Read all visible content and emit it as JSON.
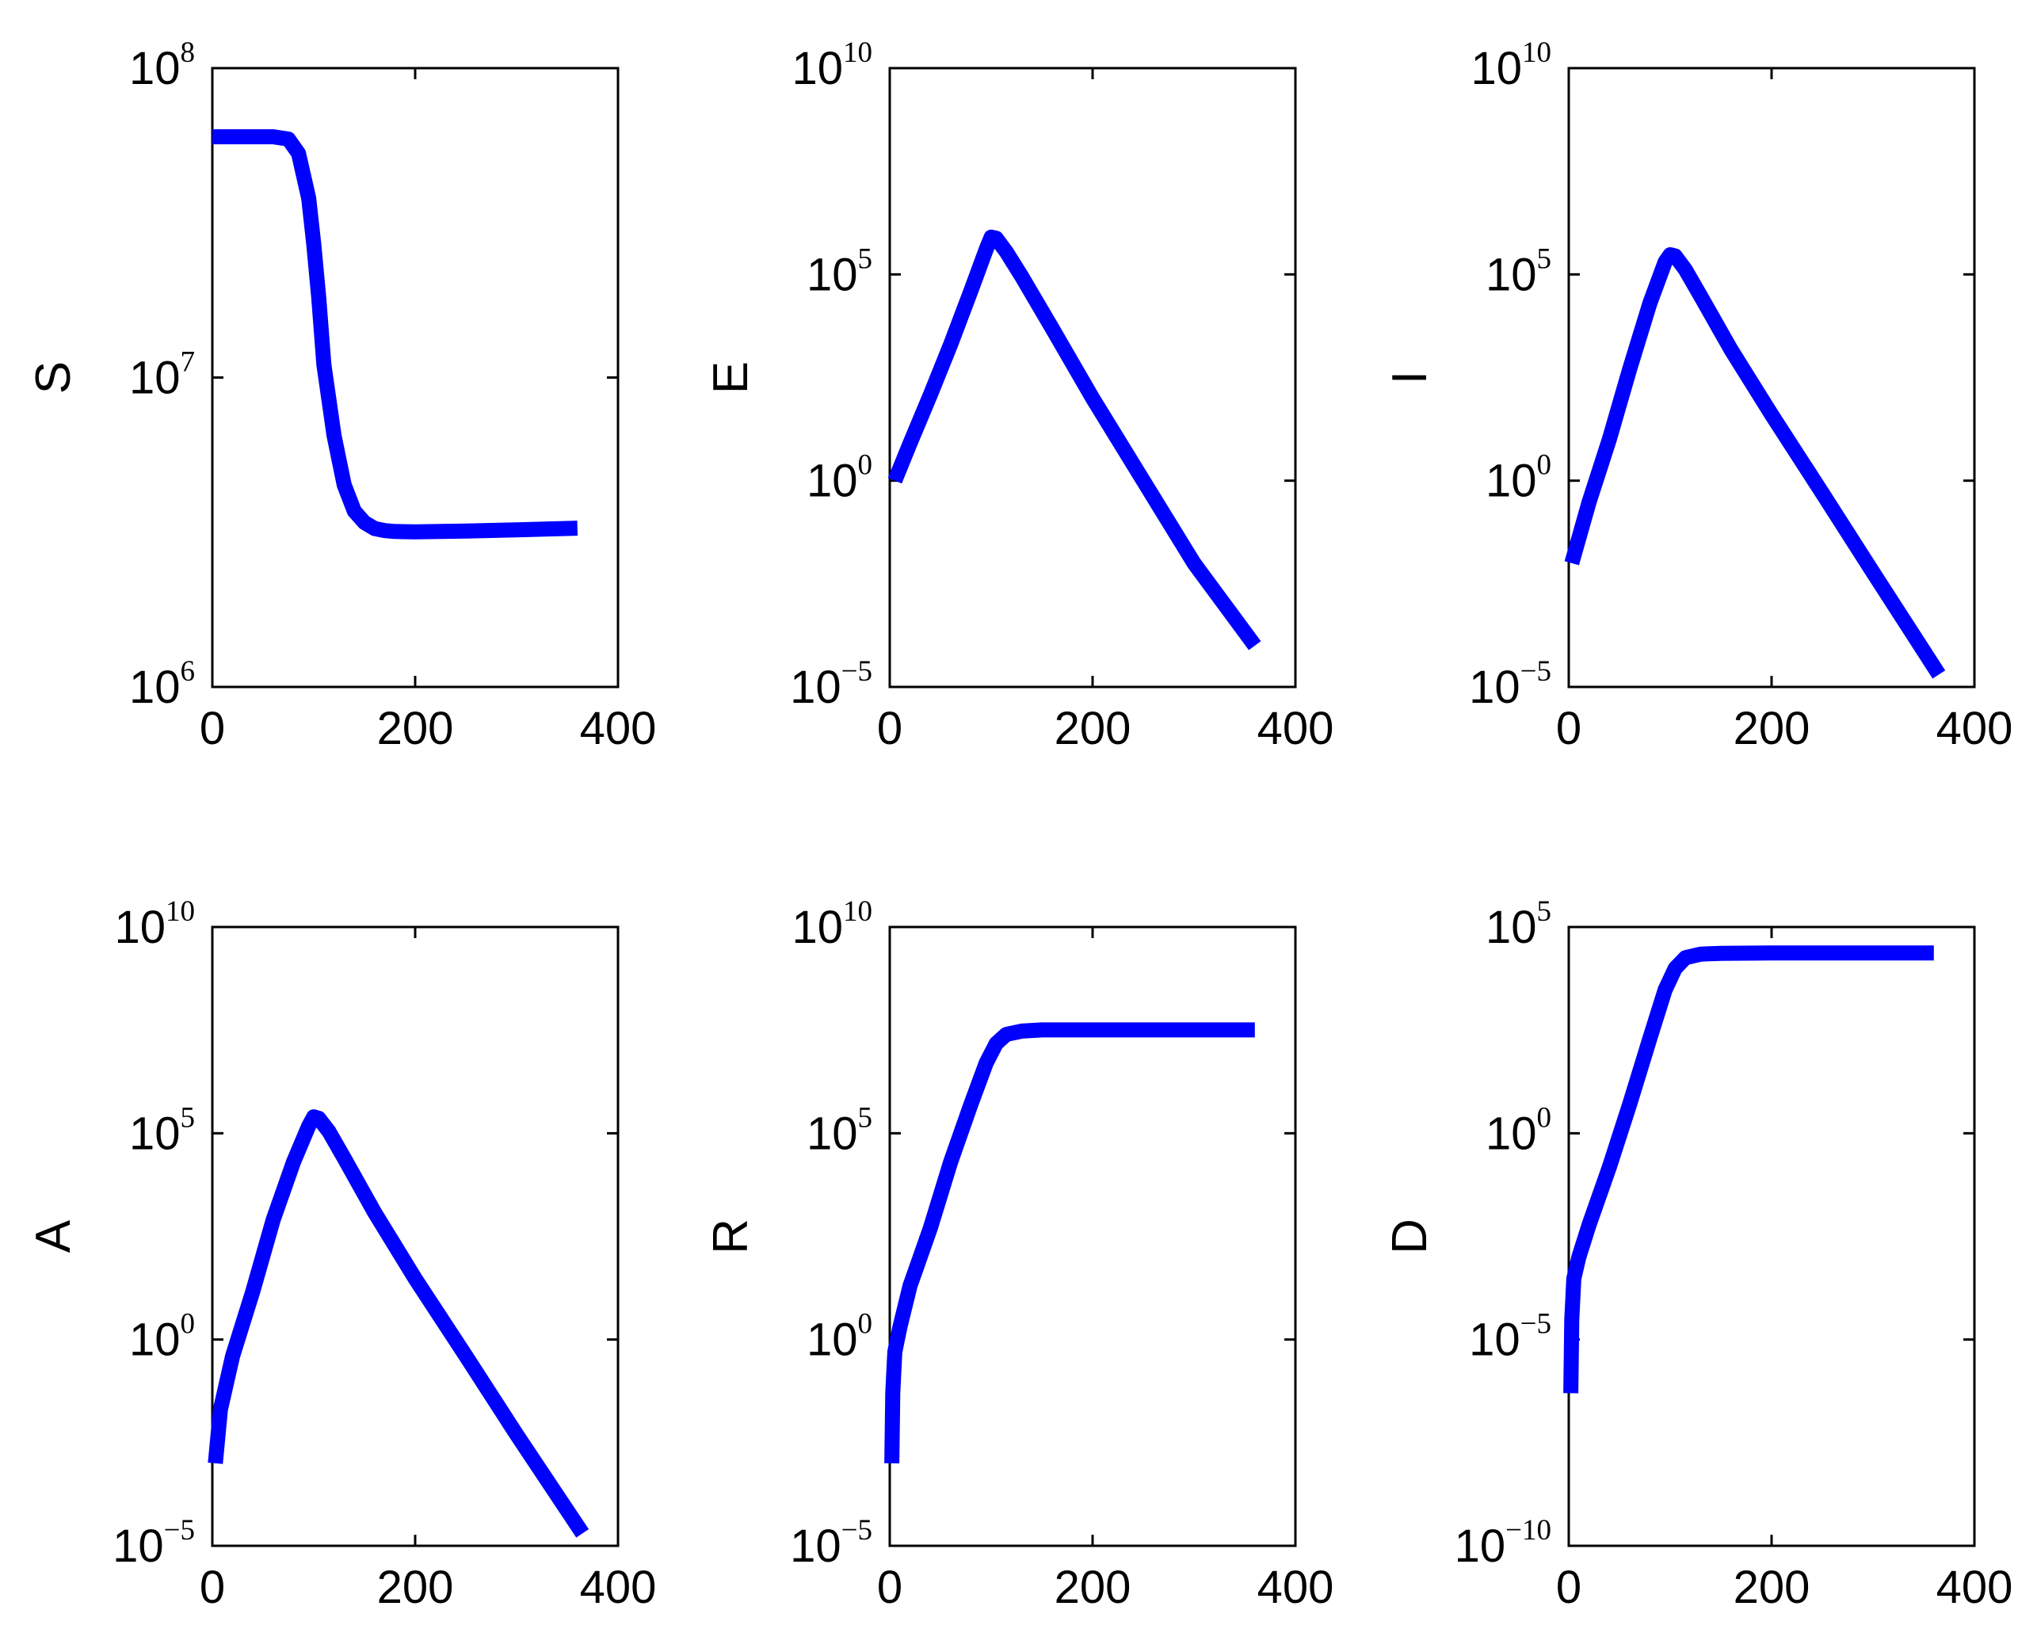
{
  "chart_data": [
    {
      "type": "line",
      "ylabel": "S",
      "xlim": [
        0,
        400
      ],
      "xticks": [
        0,
        200,
        400
      ],
      "yscale": "log",
      "ylim": [
        1000000,
        100000000
      ],
      "yticks": [
        {
          "base": "10",
          "exp": "6"
        },
        {
          "base": "10",
          "exp": "7"
        },
        {
          "base": "10",
          "exp": "8"
        }
      ],
      "line_color": "#0000ff",
      "series": [
        {
          "x": [
            0,
            30,
            60,
            75,
            85,
            95,
            100,
            105,
            110,
            120,
            130,
            140,
            150,
            160,
            170,
            180,
            200,
            250,
            300,
            360
          ],
          "y": [
            60000000,
            60000000,
            60000000,
            59000000,
            53000000,
            38000000,
            27000000,
            18000000,
            11000000,
            6500000,
            4500000,
            3700000,
            3400000,
            3250000,
            3200000,
            3180000,
            3170000,
            3190000,
            3220000,
            3260000
          ]
        }
      ]
    },
    {
      "type": "line",
      "ylabel": "E",
      "xlim": [
        0,
        400
      ],
      "xticks": [
        0,
        200,
        400
      ],
      "yscale": "log",
      "ylim": [
        1e-05,
        10000000000
      ],
      "yticks": [
        {
          "base": "10",
          "exp": "−5"
        },
        {
          "base": "10",
          "exp": "0"
        },
        {
          "base": "10",
          "exp": "5"
        },
        {
          "base": "10",
          "exp": "10"
        }
      ],
      "line_color": "#0000ff",
      "series": [
        {
          "x": [
            5,
            20,
            40,
            60,
            80,
            95,
            100,
            105,
            115,
            130,
            160,
            200,
            250,
            300,
            360
          ],
          "y": [
            1,
            8,
            120,
            2000,
            40000,
            400000,
            800000,
            750000,
            350000,
            90000,
            5000,
            100,
            1,
            0.01,
            0.0001
          ]
        }
      ]
    },
    {
      "type": "line",
      "ylabel": "I",
      "xlim": [
        0,
        400
      ],
      "xticks": [
        0,
        200,
        400
      ],
      "yscale": "log",
      "ylim": [
        1e-05,
        10000000000
      ],
      "yticks": [
        {
          "base": "10",
          "exp": "−5"
        },
        {
          "base": "10",
          "exp": "0"
        },
        {
          "base": "10",
          "exp": "5"
        },
        {
          "base": "10",
          "exp": "10"
        }
      ],
      "line_color": "#0000ff",
      "series": [
        {
          "x": [
            3,
            20,
            40,
            60,
            80,
            95,
            100,
            105,
            115,
            130,
            160,
            200,
            250,
            300,
            365
          ],
          "y": [
            0.01,
            0.3,
            10,
            500,
            20000,
            200000,
            300000,
            280000,
            130000,
            30000,
            1500,
            40,
            0.5,
            0.006,
            2e-05
          ]
        }
      ]
    },
    {
      "type": "line",
      "ylabel": "A",
      "xlim": [
        0,
        400
      ],
      "xticks": [
        0,
        200,
        400
      ],
      "yscale": "log",
      "ylim": [
        1e-05,
        10000000000
      ],
      "yticks": [
        {
          "base": "10",
          "exp": "−5"
        },
        {
          "base": "10",
          "exp": "0"
        },
        {
          "base": "10",
          "exp": "5"
        },
        {
          "base": "10",
          "exp": "10"
        }
      ],
      "line_color": "#0000ff",
      "series": [
        {
          "x": [
            3,
            8,
            20,
            40,
            60,
            80,
            95,
            100,
            105,
            115,
            130,
            160,
            200,
            250,
            300,
            365
          ],
          "y": [
            0.001,
            0.02,
            0.4,
            15,
            800,
            20000,
            150000,
            250000,
            230000,
            110000,
            25000,
            1200,
            30,
            0.4,
            0.005,
            2e-05
          ]
        }
      ]
    },
    {
      "type": "line",
      "ylabel": "R",
      "xlim": [
        0,
        400
      ],
      "xticks": [
        0,
        200,
        400
      ],
      "yscale": "log",
      "ylim": [
        1e-05,
        10000000000
      ],
      "yticks": [
        {
          "base": "10",
          "exp": "−5"
        },
        {
          "base": "10",
          "exp": "0"
        },
        {
          "base": "10",
          "exp": "5"
        },
        {
          "base": "10",
          "exp": "10"
        }
      ],
      "line_color": "#0000ff",
      "series": [
        {
          "x": [
            2,
            3,
            5,
            10,
            20,
            40,
            60,
            80,
            95,
            105,
            115,
            130,
            150,
            200,
            280,
            360
          ],
          "y": [
            0.001,
            0.05,
            0.5,
            2,
            20,
            500,
            20000,
            500000,
            5000000,
            15000000,
            25000000,
            30000000,
            32000000,
            32000000,
            32000000,
            32000000
          ]
        }
      ]
    },
    {
      "type": "line",
      "ylabel": "D",
      "xlim": [
        0,
        400
      ],
      "xticks": [
        0,
        200,
        400
      ],
      "yscale": "log",
      "ylim": [
        1e-10,
        100000
      ],
      "yticks": [
        {
          "base": "10",
          "exp": "−10"
        },
        {
          "base": "10",
          "exp": "−5"
        },
        {
          "base": "10",
          "exp": "0"
        },
        {
          "base": "10",
          "exp": "5"
        }
      ],
      "line_color": "#0000ff",
      "series": [
        {
          "x": [
            2,
            3,
            5,
            10,
            20,
            40,
            60,
            80,
            95,
            105,
            115,
            130,
            150,
            200,
            280,
            360
          ],
          "y": [
            5e-07,
            3e-05,
            0.0003,
            0.001,
            0.006,
            0.15,
            5,
            200,
            3000,
            10000,
            18000,
            22000,
            23000,
            23500,
            23500,
            23500
          ]
        }
      ]
    }
  ]
}
